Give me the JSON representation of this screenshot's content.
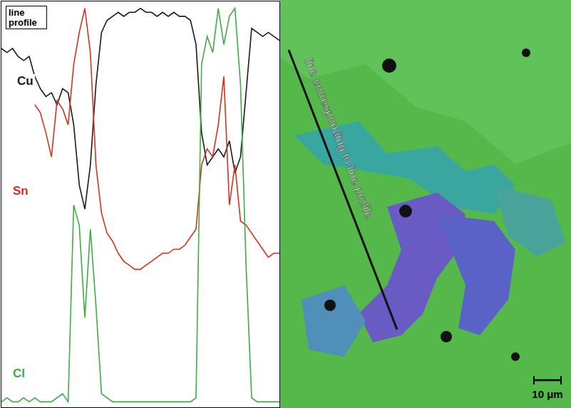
{
  "chart_data": {
    "type": "line",
    "title": "line profile",
    "x": [
      0,
      2,
      4,
      6,
      8,
      10,
      12,
      14,
      16,
      18,
      20,
      22,
      24,
      26,
      28,
      30,
      32,
      34,
      36,
      38,
      40,
      42,
      44,
      46,
      48,
      50,
      52,
      54,
      56,
      58,
      60,
      62,
      64,
      66,
      68,
      70,
      72,
      74,
      76,
      78,
      80,
      82,
      84,
      86,
      88,
      90,
      92,
      94,
      96,
      98,
      100
    ],
    "xlim": [
      0,
      100
    ],
    "ylim": [
      0,
      100
    ],
    "tick_labels": false,
    "grid": false,
    "series": [
      {
        "name": "Cu",
        "color": "#1a1a1a",
        "values": [
          89,
          88,
          89,
          87,
          86,
          87,
          82,
          79,
          77,
          78,
          75,
          79,
          78,
          70,
          55,
          49,
          60,
          80,
          93,
          96,
          97,
          98,
          97,
          98,
          98,
          99,
          98,
          98,
          97,
          98,
          97,
          98,
          97,
          97,
          96,
          90,
          68,
          60,
          62,
          64,
          62,
          66,
          58,
          62,
          78,
          94,
          93,
          92,
          93,
          92,
          91
        ]
      },
      {
        "name": "Sn",
        "color": "#d9301e",
        "values": [
          null,
          null,
          null,
          null,
          null,
          null,
          75,
          73,
          68,
          62,
          76,
          74,
          70,
          85,
          93,
          99,
          88,
          60,
          48,
          43,
          41,
          38,
          36,
          35,
          34,
          34,
          35,
          36,
          37,
          38,
          38,
          39,
          39,
          40,
          42,
          44,
          60,
          64,
          62,
          70,
          82,
          50,
          60,
          46,
          45,
          43,
          41,
          39,
          37,
          38,
          38
        ]
      },
      {
        "name": "Cl",
        "color": "#3cae43",
        "values": [
          1,
          2,
          1,
          1,
          2,
          1,
          2,
          1,
          1,
          1,
          2,
          3,
          1,
          50,
          45,
          22,
          44,
          25,
          3,
          2,
          1,
          1,
          1,
          1,
          1,
          1,
          1,
          1,
          1,
          1,
          1,
          1,
          1,
          1,
          1,
          2,
          85,
          92,
          88,
          99,
          90,
          97,
          99,
          80,
          35,
          2,
          1,
          1,
          1,
          1,
          1
        ]
      }
    ]
  },
  "map": {
    "annotation": "line corresponding to line profile",
    "scale_bar": "10 μm"
  }
}
